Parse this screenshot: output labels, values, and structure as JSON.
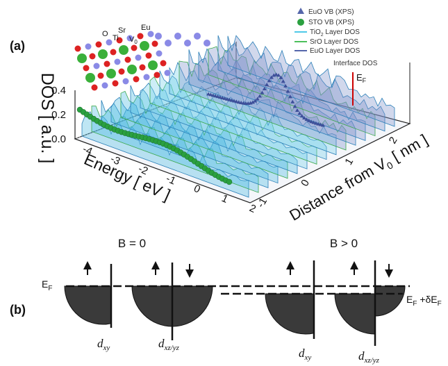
{
  "panel_a": {
    "label": "(a)",
    "legend": [
      "EuO VB (XPS)",
      "STO VB (XPS)",
      {
        "main": "TiO",
        "sub": "2",
        "rest": " Layer DOS"
      },
      "SrO Layer DOS",
      "EuO Layer DOS"
    ],
    "interface_label": "Interface DOS",
    "fermi": {
      "main": "E",
      "sub": "F"
    },
    "atoms": [
      "O",
      "Ti",
      "Sr",
      {
        "main": "V",
        "sub": "0"
      },
      "Eu"
    ],
    "y_axis": {
      "label": "DOS [ a.u. ]",
      "ticks": [
        "0.4",
        "0.2",
        "0.0"
      ]
    },
    "x_axis": {
      "label": "Energy [ eV ]",
      "ticks": [
        "-4",
        "-3",
        "-2",
        "-1",
        "0",
        "1",
        "2"
      ]
    },
    "z_axis": {
      "label": {
        "main": "Distance from V",
        "sub": "0",
        "rest": " [ nm ]"
      },
      "ticks": [
        "-1",
        "0",
        "1",
        "2"
      ]
    }
  },
  "panel_b": {
    "label": "(b)",
    "left_title": "B = 0",
    "right_title": "B > 0",
    "fermi": {
      "main": "E",
      "sub": "F"
    },
    "fermi_shift": {
      "main": "E",
      "sub": "F",
      "rest": " +δE",
      "sub2": "F"
    },
    "orbitals": [
      {
        "main": "d",
        "sub": "xy"
      },
      {
        "main": "d",
        "sub": "xz/yz"
      },
      {
        "main": "d",
        "sub": "xy"
      },
      {
        "main": "d",
        "sub": "xz/yz"
      }
    ]
  }
}
